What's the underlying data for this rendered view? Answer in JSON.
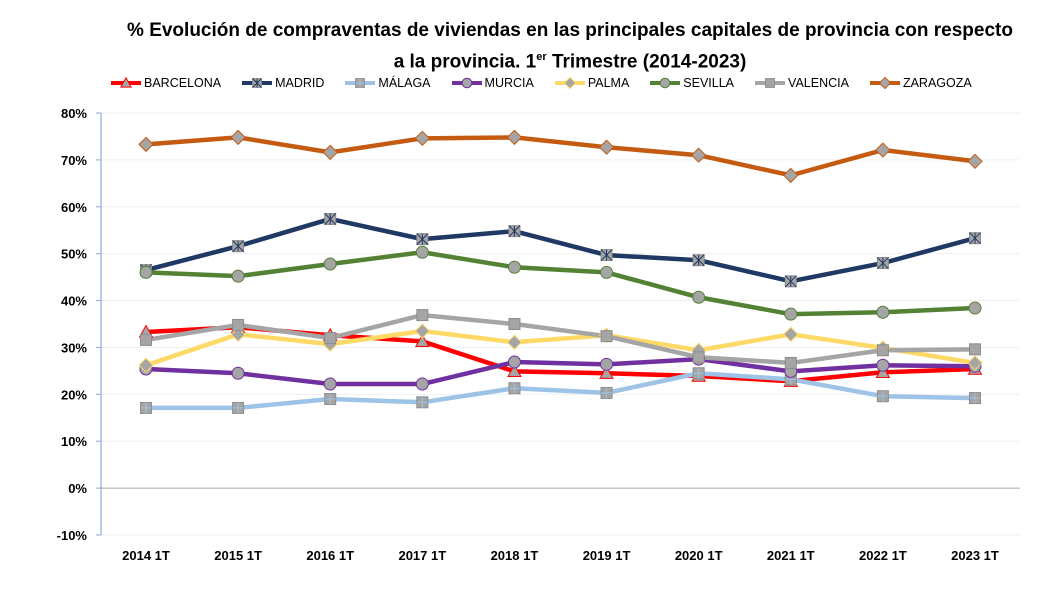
{
  "chart_data": {
    "type": "line",
    "title_main": "% Evolución de compraventas de viviendas en las principales capitales de provincia con respecto",
    "title_line2_prefix": "a la provincia.  1",
    "title_sup": "er",
    "title_line2_suffix": " Trimestre (2014-2023)",
    "xlabel": "",
    "ylabel": "",
    "ylim": [
      -10,
      80
    ],
    "ytick_step": 10,
    "ytick_format": "percent",
    "grid": true,
    "legend_position": "top",
    "categories": [
      "2014 1T",
      "2015 1T",
      "2016 1T",
      "2017 1T",
      "2018 1T",
      "2019 1T",
      "2020 1T",
      "2021 1T",
      "2022 1T",
      "2023 1T"
    ],
    "series": [
      {
        "name": "BARCELONA",
        "color": "#ff0000",
        "marker": "triangle",
        "values": [
          33.3,
          34.3,
          32.6,
          31.3,
          24.9,
          24.5,
          23.9,
          22.8,
          24.7,
          25.4
        ]
      },
      {
        "name": "MADRID",
        "color": "#1f3864",
        "marker": "asterisk-square",
        "values": [
          46.5,
          51.6,
          57.4,
          53.1,
          54.8,
          49.7,
          48.6,
          44.1,
          48.0,
          53.3
        ]
      },
      {
        "name": "MÁLAGA",
        "color": "#9dc3e6",
        "marker": "cross-square",
        "values": [
          17.1,
          17.1,
          19.0,
          18.3,
          21.3,
          20.3,
          24.5,
          23.2,
          19.6,
          19.2
        ]
      },
      {
        "name": "MURCIA",
        "color": "#7030a0",
        "marker": "circle",
        "values": [
          25.4,
          24.5,
          22.2,
          22.2,
          26.9,
          26.4,
          27.5,
          24.9,
          26.2,
          26.0
        ]
      },
      {
        "name": "PALMA",
        "color": "#ffd966",
        "marker": "diamond",
        "values": [
          26.2,
          32.8,
          30.7,
          33.5,
          31.1,
          32.6,
          29.4,
          32.8,
          29.9,
          26.7
        ]
      },
      {
        "name": "SEVILLA",
        "color": "#548235",
        "marker": "circle",
        "values": [
          46.0,
          45.2,
          47.8,
          50.3,
          47.1,
          46.0,
          40.7,
          37.1,
          37.5,
          38.4
        ]
      },
      {
        "name": "VALENCIA",
        "color": "#a5a5a5",
        "marker": "square",
        "values": [
          31.6,
          34.8,
          32.0,
          36.9,
          35.0,
          32.4,
          27.9,
          26.7,
          29.4,
          29.6
        ]
      },
      {
        "name": "ZARAGOZA",
        "color": "#c55a11",
        "marker": "diamond",
        "values": [
          73.3,
          74.8,
          71.6,
          74.6,
          74.8,
          72.7,
          71.0,
          66.7,
          72.1,
          69.7
        ]
      }
    ],
    "marker_fill": "#a5a5a5"
  }
}
